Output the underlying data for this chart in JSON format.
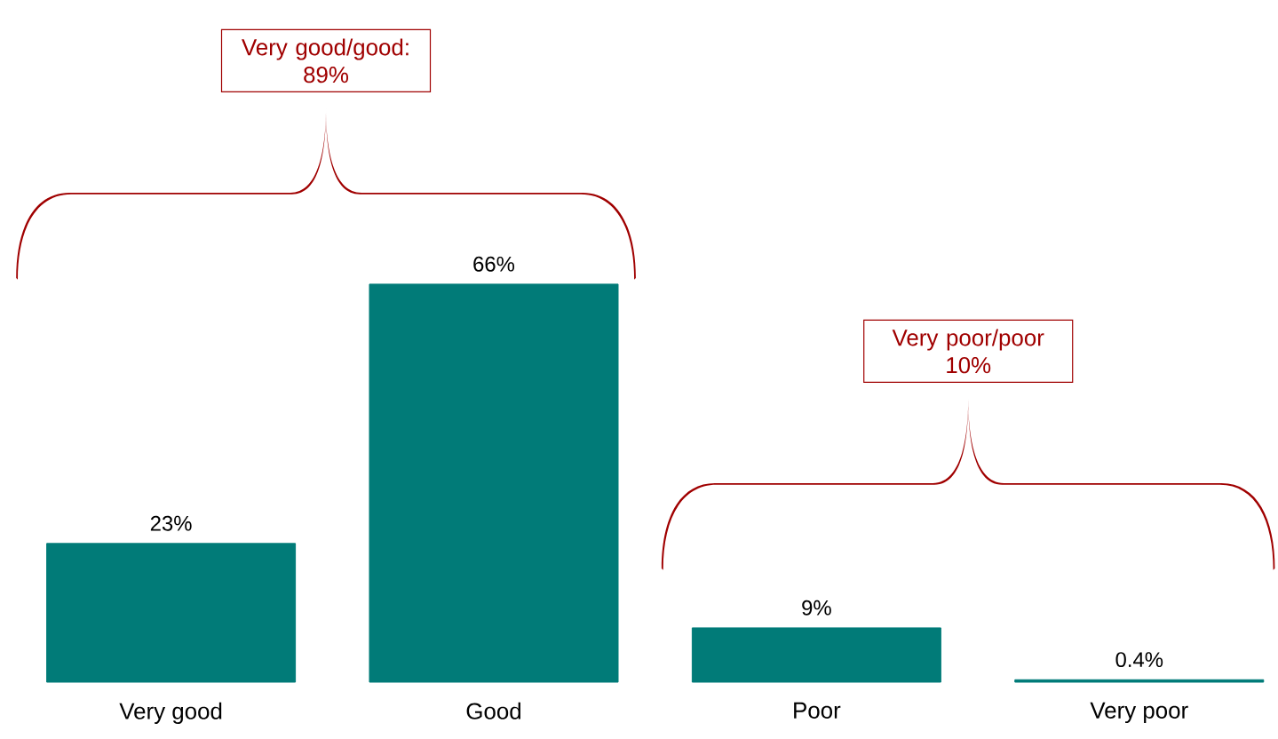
{
  "chart_data": {
    "type": "bar",
    "categories": [
      "Very good",
      "Good",
      "Poor",
      "Very poor"
    ],
    "values": [
      23,
      66,
      9,
      0.4
    ],
    "value_labels": [
      "23%",
      "66%",
      "9%",
      "0.4%"
    ],
    "color": "#017b78",
    "annotations": [
      "Very good/good: 89%",
      "Very poor/poor 10%"
    ]
  }
}
